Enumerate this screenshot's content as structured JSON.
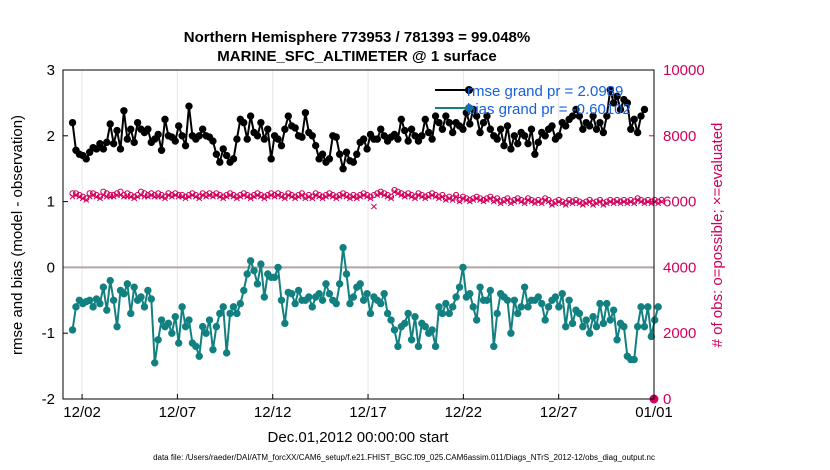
{
  "chart_data": {
    "type": "line",
    "title_line1": "Northern Hemisphere 773953 / 781393 = 99.048%",
    "title_line2": "MARINE_SFC_ALTIMETER @ 1 surface",
    "xlabel": "Dec.01,2012 00:00:00 start",
    "ylabel_left": "rmse and bias (model - observation)",
    "ylabel_right": "# of obs: o=possible; ×=evaluated",
    "footer": "data file: /Users/raeder/DAI/ATM_forcXX/CAM6_setup/f.e21.FHIST_BGC.f09_025.CAM6assim.011/Diags_NTrS_2012-12/obs_diag_output.nc",
    "x_tick_labels": [
      "12/02",
      "12/07",
      "12/12",
      "12/17",
      "12/22",
      "12/27",
      "01/01"
    ],
    "x_tick_days": [
      1,
      6,
      11,
      16,
      21,
      26,
      31
    ],
    "xlim_days": [
      0,
      31
    ],
    "ylim_left": [
      -2,
      3
    ],
    "yticks_left": [
      "-2",
      "-1",
      "0",
      "1",
      "2",
      "3"
    ],
    "ylim_right": [
      0,
      10000
    ],
    "yticks_right": [
      "0",
      "2000",
      "4000",
      "6000",
      "8000",
      "10000"
    ],
    "legend": {
      "rmse": "rmse grand pr = 2.0989",
      "bias": "bias grand pr = -0.60102"
    },
    "colors": {
      "rmse": "#000000",
      "bias": "#128080",
      "obs": "#d2005c",
      "zero_line": "#b4a5a5",
      "legend_text": "#1660e0"
    },
    "series_rmse": [
      2.2,
      1.78,
      1.72,
      1.7,
      1.65,
      1.75,
      1.82,
      1.8,
      1.88,
      1.8,
      1.9,
      2.18,
      1.88,
      2.08,
      1.8,
      2.38,
      1.95,
      2.1,
      1.9,
      2.2,
      2.1,
      2.05,
      2.1,
      1.9,
      1.95,
      2.02,
      1.78,
      2.25,
      2.0,
      1.98,
      1.92,
      2.15,
      2.0,
      1.85,
      2.45,
      2.0,
      1.95,
      2.0,
      2.1,
      2.0,
      1.98,
      1.92,
      1.72,
      1.6,
      1.8,
      1.7,
      1.6,
      1.65,
      1.95,
      2.25,
      2.2,
      1.95,
      2.3,
      2.05,
      2.0,
      2.2,
      1.95,
      2.1,
      1.65,
      2.0,
      1.95,
      1.85,
      2.1,
      2.3,
      2.15,
      2.12,
      2.0,
      1.98,
      2.35,
      2.05,
      2.0,
      1.85,
      1.65,
      1.72,
      1.6,
      1.65,
      2.0,
      1.98,
      1.72,
      1.5,
      1.75,
      1.62,
      1.6,
      1.72,
      1.9,
      1.95,
      1.8,
      2.02,
      1.95,
      1.95,
      2.1,
      2.0,
      1.92,
      1.98,
      2.02,
      1.95,
      2.25,
      2.08,
      1.92,
      2.1,
      2.0,
      1.92,
      2.0,
      2.25,
      2.05,
      1.95,
      2.3,
      2.2,
      2.1,
      2.3,
      2.2,
      2.05,
      2.2,
      2.15,
      2.1,
      2.35,
      2.18,
      2.4,
      2.3,
      2.05,
      2.2,
      2.3,
      2.1,
      2.0,
      1.95,
      2.1,
      1.85,
      2.15,
      1.8,
      2.0,
      1.88,
      2.05,
      2.0,
      1.88,
      2.1,
      1.72,
      1.9,
      2.05,
      2.0,
      2.1,
      2.15,
      1.95,
      2.0,
      2.2,
      2.15,
      2.25,
      2.3,
      2.4,
      2.3,
      2.1,
      2.2,
      2.15,
      2.3,
      2.1,
      2.2,
      2.05,
      2.3,
      2.7,
      2.5,
      2.6,
      2.4,
      2.55,
      2.5,
      2.1,
      2.25,
      2.05,
      2.3,
      2.4
    ],
    "series_bias": [
      -0.95,
      -0.6,
      -0.5,
      -0.55,
      -0.52,
      -0.5,
      -0.6,
      -0.48,
      -0.55,
      -0.3,
      -0.65,
      -0.2,
      -0.5,
      -0.9,
      -0.35,
      -0.4,
      -0.25,
      -0.7,
      -0.3,
      -0.5,
      -0.45,
      -0.6,
      -0.35,
      -0.48,
      -1.45,
      -1.1,
      -0.8,
      -0.9,
      -0.85,
      -1.0,
      -0.75,
      -1.15,
      -0.6,
      -0.9,
      -0.8,
      -1.15,
      -1.2,
      -1.35,
      -0.9,
      -1.0,
      -0.8,
      -1.25,
      -0.9,
      -0.7,
      -0.6,
      -1.3,
      -0.7,
      -0.6,
      -0.7,
      -0.55,
      -0.35,
      -0.1,
      0.1,
      -0.05,
      -0.25,
      0.05,
      -0.45,
      -0.1,
      -0.15,
      -0.15,
      0.0,
      -0.5,
      -0.85,
      -0.38,
      -0.4,
      -0.55,
      -0.35,
      -0.5,
      -0.5,
      -0.45,
      -0.6,
      -0.45,
      -0.4,
      -0.5,
      -0.25,
      -0.4,
      -0.5,
      -0.55,
      -0.25,
      0.3,
      -0.1,
      -0.55,
      -0.45,
      -0.3,
      -0.25,
      -0.5,
      -0.4,
      -0.7,
      -0.45,
      -0.5,
      -0.55,
      -0.4,
      -0.7,
      -0.8,
      -0.95,
      -1.2,
      -0.9,
      -0.85,
      -0.7,
      -1.1,
      -0.75,
      -1.2,
      -0.85,
      -0.9,
      -1.0,
      -0.95,
      -1.2,
      -0.6,
      -0.7,
      -0.55,
      -0.7,
      -0.6,
      -0.45,
      -0.3,
      0.0,
      -0.45,
      -0.4,
      -0.6,
      -0.8,
      -0.3,
      -0.5,
      -0.5,
      -0.35,
      -1.2,
      -0.7,
      -0.4,
      -0.45,
      -0.5,
      -1.0,
      -0.5,
      -0.7,
      -0.6,
      -0.3,
      -0.6,
      -0.5,
      -0.5,
      -0.45,
      -0.55,
      -0.8,
      -0.6,
      -0.5,
      -0.45,
      -0.6,
      -0.4,
      -0.9,
      -0.5,
      -0.85,
      -0.65,
      -0.7,
      -0.9,
      -0.8,
      -1.0,
      -0.75,
      -0.9,
      -0.55,
      -0.85,
      -0.55,
      -0.8,
      -0.65,
      -1.1,
      -0.85,
      -0.9,
      -1.35,
      -1.4,
      -1.4,
      -0.9,
      -0.6,
      -0.9,
      -0.6,
      -1.05,
      -0.8,
      -0.6
    ],
    "series_obs_possible": [
      6250,
      6250,
      6200,
      6150,
      6100,
      6250,
      6250,
      6200,
      6150,
      6300,
      6250,
      6200,
      6200,
      6250,
      6300,
      6200,
      6250,
      6200,
      6150,
      6200,
      6300,
      6250,
      6200,
      6250,
      6200,
      6250,
      6200,
      6150,
      6250,
      6200,
      6250,
      6200,
      6200,
      6150,
      6200,
      6250,
      6200,
      6150,
      6250,
      6200,
      6250,
      6200,
      6250,
      6200,
      6150,
      6200,
      6250,
      6200,
      6150,
      6200,
      6250,
      6200,
      6150,
      6200,
      6250,
      6200,
      6150,
      6200,
      6250,
      6200,
      6250,
      6200,
      6150,
      6250,
      6200,
      6150,
      6200,
      6250,
      6150,
      6200,
      6150,
      6250,
      6200,
      6150,
      6200,
      6250,
      6200,
      6150,
      6200,
      6250,
      6200,
      6150,
      6200,
      6150,
      6200,
      6250,
      6200,
      6150,
      6200,
      6250,
      6300,
      6250,
      6200,
      6150,
      6350,
      6300,
      6250,
      6200,
      6250,
      6200,
      6150,
      6250,
      6200,
      6150,
      6200,
      6250,
      6200,
      6150,
      6200,
      6100,
      6150,
      6100,
      6200,
      6050,
      6150,
      6100,
      6050,
      6100,
      6150,
      6100,
      6050,
      6100,
      6150,
      6050,
      6100,
      6000,
      6050,
      6100,
      6000,
      6050,
      6100,
      6050,
      6000,
      6100,
      6050,
      6000,
      6050,
      6000,
      6100,
      6050,
      5950,
      6000,
      6050,
      6000,
      5950,
      6050,
      6000,
      6050,
      6000,
      5950,
      6000,
      6050,
      5950,
      6000,
      6050,
      5950,
      6000,
      6050,
      6000,
      6050,
      6000,
      6050,
      6000,
      6050,
      6000,
      6100,
      6050,
      6000,
      6050,
      6000,
      6050,
      6000,
      6050
    ],
    "series_obs_evaluated": [
      6150,
      6200,
      6150,
      6100,
      6050,
      6150,
      6200,
      6150,
      6100,
      6200,
      6150,
      6150,
      6150,
      6200,
      6200,
      6150,
      6150,
      6150,
      6100,
      6150,
      6200,
      6150,
      6150,
      6200,
      6150,
      6150,
      6150,
      6100,
      6200,
      6150,
      6200,
      6150,
      6150,
      6100,
      6150,
      6200,
      6150,
      6100,
      6200,
      6150,
      6200,
      6150,
      6200,
      6150,
      6100,
      6150,
      6200,
      6150,
      6100,
      6150,
      6200,
      6150,
      6100,
      6150,
      6200,
      6150,
      6100,
      6150,
      6200,
      6150,
      6200,
      6150,
      6100,
      6200,
      6150,
      6100,
      6150,
      6200,
      6100,
      6150,
      6100,
      6200,
      6150,
      6100,
      6150,
      6200,
      6150,
      6100,
      6150,
      6200,
      6150,
      6100,
      6150,
      6100,
      6150,
      6200,
      6150,
      6100,
      5850,
      6200,
      6250,
      6200,
      6150,
      6100,
      6300,
      6250,
      6200,
      6150,
      6200,
      6150,
      6100,
      6200,
      6150,
      6100,
      6150,
      6200,
      6150,
      6100,
      6150,
      6050,
      6100,
      6050,
      6150,
      6000,
      6100,
      6050,
      6000,
      6050,
      6100,
      6050,
      6000,
      6050,
      6100,
      6000,
      6050,
      5950,
      6000,
      6050,
      5950,
      6000,
      6050,
      6000,
      5950,
      6050,
      6000,
      5950,
      6000,
      5950,
      6050,
      6000,
      5900,
      5950,
      6000,
      5950,
      5900,
      6000,
      5950,
      6000,
      5950,
      5900,
      5950,
      6000,
      5900,
      5950,
      6000,
      5900,
      5950,
      6000,
      5950,
      6000,
      5950,
      6000,
      5950,
      6000,
      5950,
      6050,
      6000,
      5950,
      6000,
      5950,
      6000,
      5950,
      6000
    ],
    "endpoint_obs": {
      "day": 31,
      "value": 0
    }
  }
}
